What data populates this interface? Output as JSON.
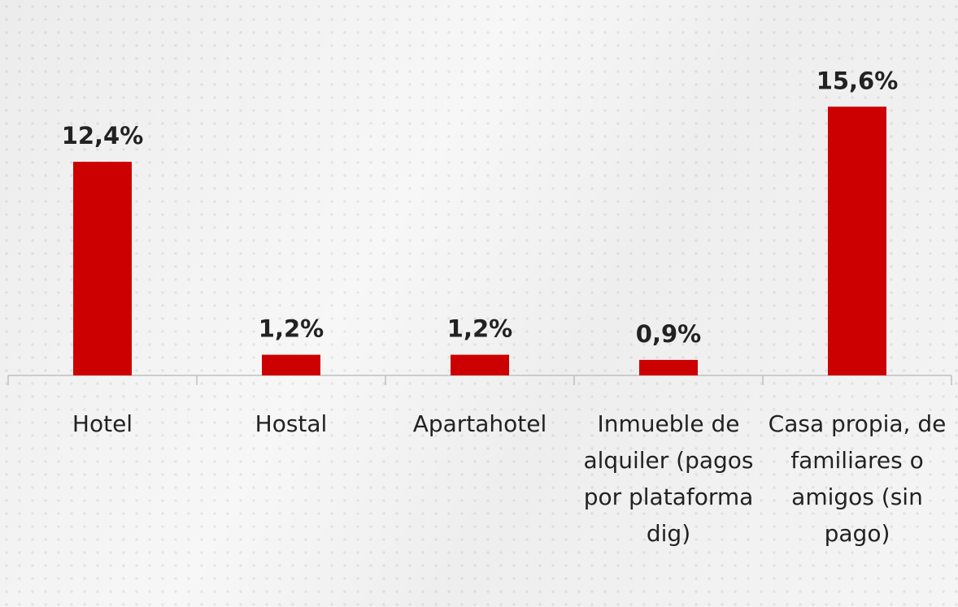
{
  "chart_data": {
    "type": "bar",
    "categories": [
      "Hotel",
      "Hostal",
      "Apartahotel",
      "Inmueble de alquiler (pagos por plataforma dig)",
      "Casa propia, de familiares o amigos (sin pago)"
    ],
    "values": [
      12.4,
      1.2,
      1.2,
      0.9,
      15.6
    ],
    "value_labels": [
      "12,4%",
      "1,2%",
      "1,2%",
      "0,9%",
      "15,6%"
    ],
    "color": "#cc0000"
  }
}
